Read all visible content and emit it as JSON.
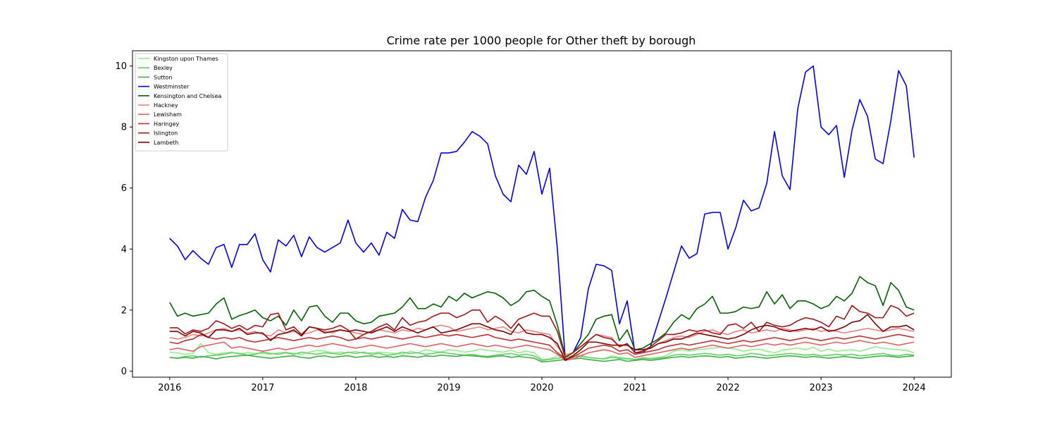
{
  "chart_data": {
    "type": "line",
    "title": "Crime rate per 1000 people for Other theft by borough",
    "xlabel": "",
    "ylabel": "",
    "x_range": [
      2015.6,
      2024.4
    ],
    "ylim": [
      -0.2,
      10.5
    ],
    "x_ticks": [
      2016,
      2017,
      2018,
      2019,
      2020,
      2021,
      2022,
      2023,
      2024
    ],
    "y_ticks": [
      0,
      2,
      4,
      6,
      8,
      10
    ],
    "grid": false,
    "legend": "top-left",
    "series": [
      {
        "name": "Kingston upon Thames",
        "color": "#90ee90",
        "x_start": 2016,
        "x_end": 2024,
        "values": [
          0.62,
          0.6,
          0.55,
          0.58,
          0.9,
          0.6,
          0.55,
          0.6,
          0.62,
          0.55,
          0.6,
          0.58,
          0.58,
          0.55,
          0.6,
          0.62,
          0.58,
          0.55,
          0.62,
          0.68,
          0.65,
          0.6,
          0.62,
          0.6,
          0.65,
          0.58,
          0.6,
          0.62,
          0.6,
          0.58,
          0.55,
          0.65,
          0.6,
          0.7,
          0.65,
          0.62,
          0.7,
          0.68,
          0.62,
          0.65,
          0.72,
          0.68,
          0.65,
          0.62,
          0.68,
          0.6,
          0.65,
          0.6,
          0.38,
          0.4,
          0.5,
          0.55,
          0.6,
          0.5,
          0.45,
          0.42,
          0.4,
          0.5,
          0.45,
          0.42,
          0.38,
          0.45,
          0.42,
          0.45,
          0.5,
          0.65,
          0.7,
          0.65,
          0.7,
          0.72,
          0.75,
          0.78,
          0.75,
          0.72,
          0.65,
          0.7,
          0.72,
          0.65,
          0.6,
          0.68,
          0.72,
          0.75,
          0.7,
          0.78,
          0.65,
          0.72,
          0.65,
          0.68,
          0.7,
          0.65,
          0.72,
          0.8,
          0.75,
          0.72,
          0.7,
          0.68,
          0.6
        ]
      },
      {
        "name": "Bexley",
        "color": "#66cc66",
        "x_start": 2016,
        "x_end": 2024,
        "values": [
          0.45,
          0.42,
          0.48,
          0.5,
          0.45,
          0.5,
          0.52,
          0.55,
          0.6,
          0.58,
          0.52,
          0.55,
          0.62,
          0.58,
          0.55,
          0.6,
          0.55,
          0.62,
          0.58,
          0.55,
          0.6,
          0.58,
          0.55,
          0.62,
          0.58,
          0.62,
          0.55,
          0.58,
          0.52,
          0.55,
          0.62,
          0.58,
          0.6,
          0.55,
          0.58,
          0.62,
          0.58,
          0.55,
          0.52,
          0.55,
          0.5,
          0.48,
          0.52,
          0.55,
          0.58,
          0.52,
          0.55,
          0.5,
          0.35,
          0.38,
          0.42,
          0.45,
          0.5,
          0.48,
          0.45,
          0.42,
          0.4,
          0.45,
          0.42,
          0.4,
          0.38,
          0.42,
          0.4,
          0.42,
          0.45,
          0.52,
          0.55,
          0.52,
          0.55,
          0.58,
          0.55,
          0.52,
          0.55,
          0.5,
          0.52,
          0.58,
          0.55,
          0.5,
          0.52,
          0.55,
          0.58,
          0.55,
          0.52,
          0.55,
          0.5,
          0.52,
          0.55,
          0.52,
          0.55,
          0.5,
          0.52,
          0.55,
          0.58,
          0.52,
          0.5,
          0.55,
          0.52
        ]
      },
      {
        "name": "Sutton",
        "color": "#3cb043",
        "x_start": 2016,
        "x_end": 2024,
        "values": [
          0.45,
          0.42,
          0.45,
          0.42,
          0.48,
          0.45,
          0.4,
          0.45,
          0.48,
          0.5,
          0.52,
          0.48,
          0.45,
          0.42,
          0.45,
          0.48,
          0.5,
          0.45,
          0.42,
          0.48,
          0.5,
          0.45,
          0.48,
          0.5,
          0.45,
          0.48,
          0.5,
          0.45,
          0.48,
          0.45,
          0.5,
          0.48,
          0.45,
          0.5,
          0.48,
          0.52,
          0.5,
          0.48,
          0.52,
          0.5,
          0.48,
          0.45,
          0.48,
          0.5,
          0.45,
          0.48,
          0.45,
          0.42,
          0.3,
          0.32,
          0.35,
          0.38,
          0.4,
          0.42,
          0.38,
          0.35,
          0.32,
          0.35,
          0.38,
          0.32,
          0.35,
          0.38,
          0.35,
          0.38,
          0.42,
          0.45,
          0.48,
          0.45,
          0.48,
          0.5,
          0.48,
          0.45,
          0.48,
          0.42,
          0.45,
          0.48,
          0.45,
          0.42,
          0.45,
          0.48,
          0.5,
          0.48,
          0.45,
          0.48,
          0.45,
          0.42,
          0.45,
          0.48,
          0.45,
          0.42,
          0.45,
          0.48,
          0.5,
          0.48,
          0.45,
          0.48,
          0.5
        ]
      },
      {
        "name": "Westminster",
        "color": "#0000ee",
        "x_start": 2016,
        "x_end": 2024,
        "values": [
          4.35,
          4.1,
          3.65,
          3.95,
          3.7,
          3.5,
          4.05,
          4.15,
          3.4,
          4.15,
          4.15,
          4.5,
          3.65,
          3.25,
          4.3,
          4.1,
          4.45,
          3.75,
          4.4,
          4.05,
          3.9,
          4.05,
          4.2,
          4.95,
          4.2,
          3.9,
          4.2,
          3.8,
          4.55,
          4.35,
          5.3,
          4.95,
          4.9,
          5.7,
          6.25,
          7.15,
          7.15,
          7.2,
          7.5,
          7.85,
          7.7,
          7.45,
          6.4,
          5.8,
          5.55,
          6.75,
          6.45,
          7.2,
          5.8,
          6.65,
          4.0,
          0.45,
          0.6,
          1.1,
          2.7,
          3.5,
          3.45,
          3.3,
          1.55,
          2.3,
          0.6,
          0.6,
          0.8,
          1.6,
          2.4,
          3.25,
          4.1,
          3.7,
          3.85,
          5.15,
          5.2,
          5.2,
          4.0,
          4.7,
          5.6,
          5.25,
          5.35,
          6.15,
          7.85,
          6.4,
          5.95,
          8.6,
          9.8,
          10.0,
          8.0,
          7.75,
          8.05,
          6.35,
          7.9,
          8.9,
          8.35,
          6.95,
          6.8,
          8.2,
          9.85,
          9.35,
          7.0
        ]
      },
      {
        "name": "Kensington and Chelsea",
        "color": "#006400",
        "x_start": 2016,
        "x_end": 2024,
        "values": [
          2.25,
          1.8,
          1.9,
          1.8,
          1.85,
          1.9,
          2.2,
          2.4,
          1.7,
          1.82,
          1.9,
          2.0,
          1.75,
          1.65,
          1.8,
          1.5,
          2.0,
          1.65,
          2.1,
          2.15,
          1.8,
          1.6,
          1.9,
          1.9,
          1.65,
          1.55,
          1.6,
          1.8,
          1.85,
          1.9,
          2.1,
          2.4,
          2.05,
          2.05,
          2.2,
          2.1,
          2.45,
          2.3,
          2.55,
          2.4,
          2.5,
          2.6,
          2.55,
          2.4,
          2.15,
          2.3,
          2.6,
          2.65,
          2.45,
          2.3,
          1.5,
          0.5,
          0.6,
          0.9,
          1.2,
          1.7,
          1.8,
          1.85,
          1.0,
          1.35,
          0.7,
          0.75,
          0.9,
          1.05,
          1.25,
          1.6,
          1.85,
          1.7,
          2.05,
          2.2,
          2.45,
          1.9,
          1.9,
          1.95,
          2.1,
          2.05,
          2.1,
          2.6,
          2.2,
          2.5,
          2.05,
          2.3,
          2.3,
          2.2,
          2.05,
          2.15,
          2.45,
          2.3,
          2.55,
          3.1,
          2.9,
          2.8,
          2.15,
          2.9,
          2.65,
          2.1,
          2.0
        ]
      },
      {
        "name": "Hackney",
        "color": "#f08080",
        "x_start": 2016,
        "x_end": 2024,
        "values": [
          1.1,
          1.05,
          1.1,
          1.2,
          1.15,
          1.25,
          1.35,
          1.4,
          1.3,
          1.35,
          1.25,
          1.3,
          1.2,
          1.15,
          1.35,
          1.25,
          1.3,
          1.2,
          1.25,
          1.35,
          1.3,
          1.25,
          1.35,
          1.3,
          1.25,
          1.2,
          1.3,
          1.35,
          1.3,
          1.25,
          1.35,
          1.3,
          1.4,
          1.35,
          1.45,
          1.5,
          1.45,
          1.3,
          1.35,
          1.4,
          1.45,
          1.35,
          1.4,
          1.45,
          1.3,
          1.25,
          1.35,
          1.3,
          1.25,
          1.2,
          0.8,
          0.5,
          0.6,
          0.8,
          1.0,
          1.2,
          1.15,
          1.1,
          0.8,
          0.9,
          0.6,
          0.65,
          0.75,
          0.9,
          1.0,
          1.1,
          1.15,
          1.1,
          1.2,
          1.3,
          1.35,
          1.25,
          1.2,
          1.3,
          1.35,
          1.25,
          1.3,
          1.35,
          1.3,
          1.4,
          1.35,
          1.3,
          1.35,
          1.4,
          1.3,
          1.35,
          1.3,
          1.25,
          1.3,
          1.35,
          1.4,
          1.35,
          1.3,
          1.35,
          1.4,
          1.35,
          1.3
        ]
      },
      {
        "name": "Lewisham",
        "color": "#e06060",
        "x_start": 2016,
        "x_end": 2024,
        "values": [
          0.7,
          0.75,
          0.7,
          0.65,
          0.8,
          0.85,
          0.9,
          0.95,
          0.75,
          0.8,
          0.75,
          0.7,
          0.65,
          0.7,
          0.75,
          0.7,
          0.75,
          0.8,
          0.85,
          0.8,
          0.85,
          0.9,
          0.85,
          0.8,
          0.75,
          0.8,
          0.85,
          0.8,
          0.75,
          0.8,
          0.85,
          0.9,
          0.85,
          0.8,
          0.85,
          0.9,
          0.85,
          0.8,
          0.85,
          0.9,
          0.85,
          0.8,
          0.85,
          0.8,
          0.75,
          0.8,
          0.85,
          0.8,
          0.75,
          0.7,
          0.55,
          0.35,
          0.4,
          0.5,
          0.6,
          0.65,
          0.7,
          0.65,
          0.55,
          0.6,
          0.45,
          0.5,
          0.55,
          0.6,
          0.65,
          0.7,
          0.75,
          0.7,
          0.75,
          0.8,
          0.85,
          0.8,
          0.75,
          0.8,
          0.85,
          0.8,
          0.85,
          0.9,
          0.85,
          0.9,
          0.85,
          0.9,
          0.95,
          0.9,
          0.85,
          0.9,
          0.95,
          0.9,
          0.95,
          1.0,
          0.95,
          0.9,
          0.95,
          0.9,
          0.85,
          0.9,
          0.95
        ]
      },
      {
        "name": "Haringey",
        "color": "#c03030",
        "x_start": 2016,
        "x_end": 2024,
        "values": [
          0.95,
          0.9,
          1.0,
          1.05,
          1.2,
          1.1,
          1.05,
          1.1,
          1.05,
          1.1,
          1.0,
          0.95,
          1.0,
          1.05,
          1.1,
          1.05,
          1.0,
          1.05,
          1.1,
          1.05,
          1.1,
          1.15,
          1.1,
          1.0,
          1.05,
          1.1,
          1.05,
          1.1,
          1.15,
          1.1,
          1.05,
          1.1,
          1.15,
          1.1,
          1.15,
          1.2,
          1.15,
          1.2,
          1.15,
          1.1,
          1.15,
          1.2,
          1.1,
          1.05,
          1.0,
          1.05,
          1.0,
          0.95,
          0.9,
          0.85,
          0.6,
          0.4,
          0.45,
          0.6,
          0.75,
          0.8,
          0.85,
          0.8,
          0.65,
          0.7,
          0.55,
          0.6,
          0.65,
          0.7,
          0.8,
          0.85,
          0.9,
          0.85,
          0.9,
          0.95,
          1.0,
          0.95,
          0.9,
          0.95,
          1.0,
          0.95,
          1.0,
          1.05,
          1.1,
          1.05,
          1.0,
          1.05,
          1.1,
          1.05,
          1.0,
          1.05,
          1.1,
          1.05,
          1.1,
          1.15,
          1.1,
          1.05,
          1.1,
          1.15,
          1.2,
          1.15,
          1.1
        ]
      },
      {
        "name": "Islington",
        "color": "#a01818",
        "x_start": 2016,
        "x_end": 2024,
        "values": [
          1.42,
          1.42,
          1.22,
          1.35,
          1.3,
          1.4,
          1.65,
          1.55,
          1.4,
          1.5,
          1.35,
          1.5,
          1.45,
          1.85,
          1.9,
          1.35,
          1.45,
          1.2,
          1.45,
          1.4,
          1.35,
          1.4,
          1.5,
          1.35,
          1.05,
          1.2,
          1.3,
          1.45,
          1.55,
          1.35,
          1.75,
          1.5,
          1.6,
          1.65,
          1.8,
          1.9,
          1.9,
          1.75,
          1.85,
          2.0,
          2.0,
          1.6,
          1.8,
          1.65,
          1.4,
          1.7,
          1.8,
          1.9,
          1.8,
          1.8,
          1.3,
          0.45,
          0.6,
          0.8,
          1.0,
          1.2,
          1.1,
          1.05,
          0.8,
          0.9,
          0.6,
          0.65,
          0.8,
          1.0,
          1.2,
          1.2,
          1.25,
          1.35,
          1.3,
          1.35,
          1.25,
          1.2,
          1.5,
          1.55,
          1.4,
          1.6,
          1.3,
          1.6,
          1.5,
          1.45,
          1.5,
          1.65,
          1.75,
          1.7,
          1.6,
          1.45,
          1.8,
          1.7,
          2.15,
          1.95,
          1.9,
          1.75,
          1.75,
          2.15,
          2.05,
          1.8,
          1.9
        ]
      },
      {
        "name": "Lambeth",
        "color": "#800000",
        "x_start": 2016,
        "x_end": 2024,
        "values": [
          1.3,
          1.3,
          1.15,
          1.3,
          1.25,
          1.1,
          1.35,
          1.35,
          1.3,
          1.4,
          1.2,
          1.25,
          1.25,
          1.0,
          1.2,
          1.25,
          1.35,
          1.15,
          1.45,
          1.4,
          1.25,
          1.3,
          1.35,
          1.3,
          1.35,
          1.3,
          1.25,
          1.35,
          1.45,
          1.3,
          1.45,
          1.35,
          1.25,
          1.35,
          1.45,
          1.25,
          1.3,
          1.35,
          1.45,
          1.55,
          1.55,
          1.45,
          1.35,
          1.3,
          1.2,
          1.55,
          1.25,
          1.2,
          1.2,
          1.1,
          0.9,
          0.35,
          0.5,
          0.7,
          0.95,
          0.95,
          0.9,
          0.85,
          0.85,
          0.85,
          0.7,
          0.7,
          0.75,
          0.9,
          0.95,
          1.05,
          1.05,
          1.15,
          1.25,
          1.2,
          1.15,
          1.1,
          1.05,
          1.1,
          1.2,
          1.35,
          1.45,
          1.5,
          1.45,
          1.35,
          1.3,
          1.35,
          1.4,
          1.35,
          1.45,
          1.3,
          1.35,
          1.45,
          1.6,
          1.65,
          1.85,
          1.55,
          1.3,
          1.45,
          1.45,
          1.5,
          1.35
        ]
      }
    ]
  }
}
